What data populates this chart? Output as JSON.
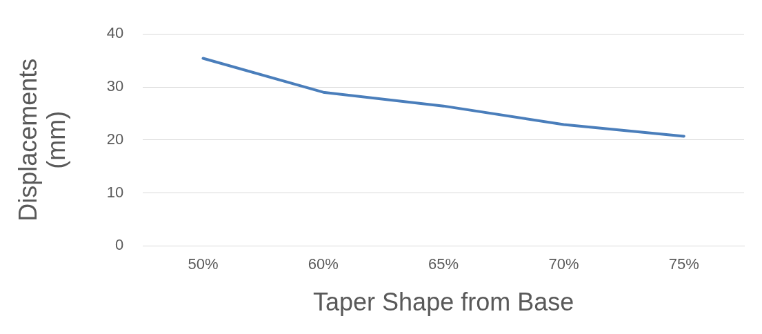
{
  "chart_data": {
    "type": "line",
    "xlabel": "Taper Shape from Base",
    "ylabel": "Displacements (mm)",
    "categories": [
      "50%",
      "60%",
      "65%",
      "70%",
      "75%"
    ],
    "series": [
      {
        "color": "#4a7ebb",
        "values": [
          35.4,
          29.0,
          26.4,
          22.9,
          20.7
        ]
      }
    ],
    "ylim": [
      0,
      40
    ],
    "yticks": [
      0,
      10,
      20,
      30,
      40
    ],
    "grid": "y",
    "legend": false,
    "marker": "none"
  }
}
